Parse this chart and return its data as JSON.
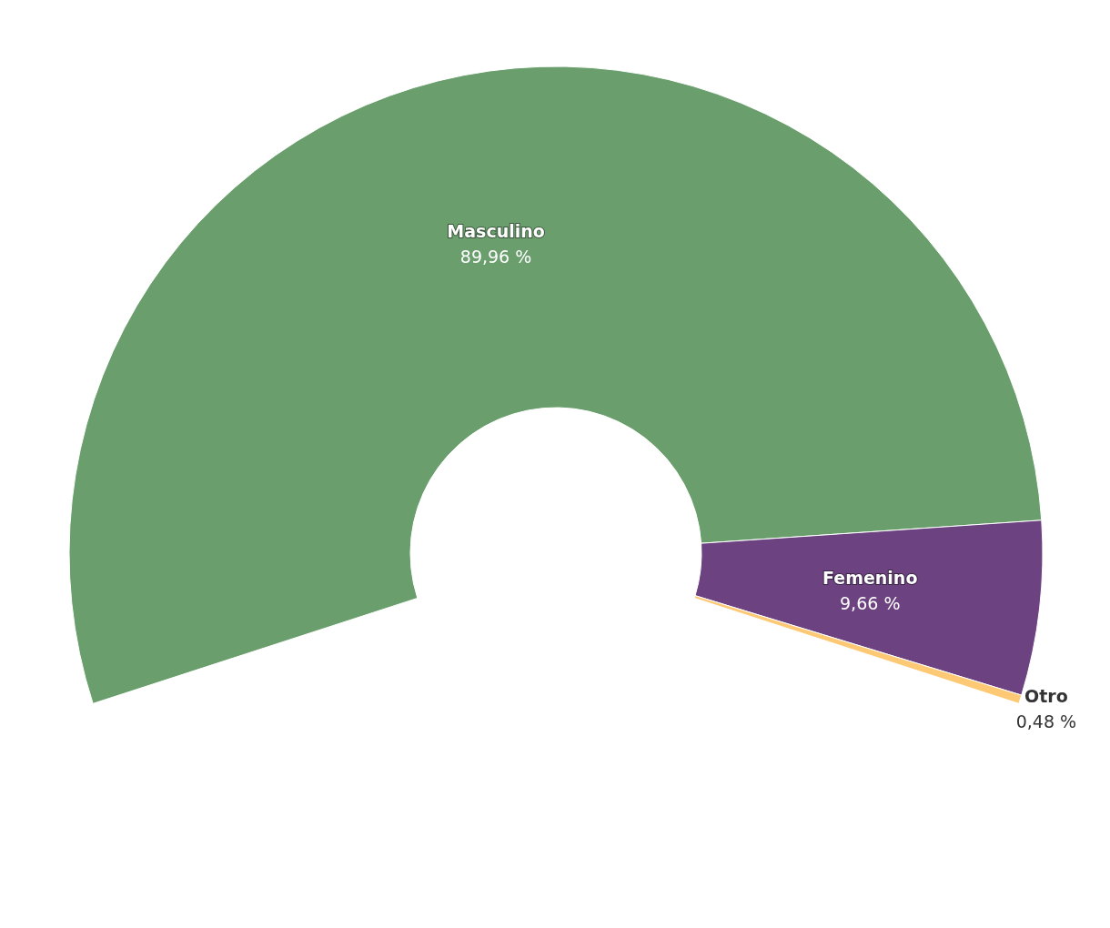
{
  "chart_data": {
    "type": "donut",
    "categories": [
      "Masculino",
      "Femenino",
      "Otro"
    ],
    "values": [
      89.96,
      9.66,
      0.48
    ],
    "colors": [
      "#6a9f6d",
      "#6c4280",
      "#fdc975"
    ],
    "value_labels": [
      "89,96 %",
      "9,66 %",
      "0,48 %"
    ]
  }
}
